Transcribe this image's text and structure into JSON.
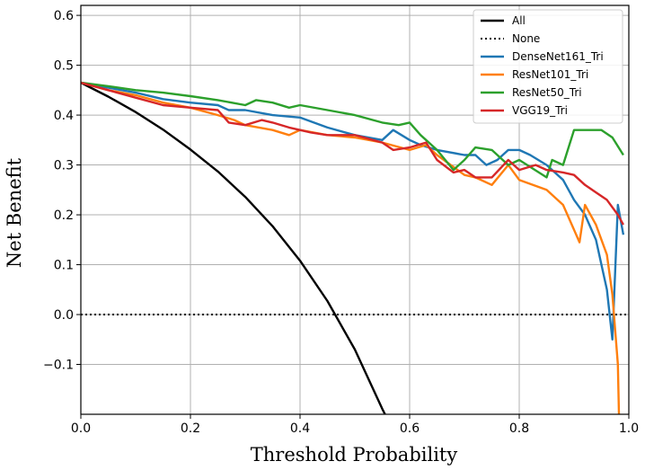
{
  "chart_data": {
    "type": "line",
    "title": "",
    "xlabel": "Threshold Probability",
    "ylabel": "Net Benefit",
    "xlim": [
      0.0,
      1.0
    ],
    "ylim": [
      -0.2,
      0.62
    ],
    "xticks": [
      0.0,
      0.2,
      0.4,
      0.6,
      0.8,
      1.0
    ],
    "xtick_labels": [
      "0.0",
      "0.2",
      "0.4",
      "0.6",
      "0.8",
      "1.0"
    ],
    "yticks": [
      -0.1,
      0.0,
      0.1,
      0.2,
      0.3,
      0.4,
      0.5,
      0.6
    ],
    "ytick_labels": [
      "−0.1",
      "0.0",
      "0.1",
      "0.2",
      "0.3",
      "0.4",
      "0.5",
      "0.6"
    ],
    "grid": true,
    "legend_position": "top-right",
    "series": [
      {
        "name": "All",
        "color": "#000000",
        "style": "solid",
        "x": [
          0.0,
          0.05,
          0.1,
          0.15,
          0.2,
          0.25,
          0.3,
          0.35,
          0.4,
          0.45,
          0.5,
          0.55,
          0.555
        ],
        "y": [
          0.465,
          0.437,
          0.406,
          0.371,
          0.331,
          0.287,
          0.236,
          0.177,
          0.108,
          0.027,
          -0.07,
          -0.189,
          -0.2
        ]
      },
      {
        "name": "None",
        "color": "#000000",
        "style": "dotted",
        "x": [
          0.0,
          1.0
        ],
        "y": [
          0.0,
          0.0
        ]
      },
      {
        "name": "DenseNet161_Tri",
        "color": "#1f77b4",
        "style": "solid",
        "x": [
          0.0,
          0.05,
          0.1,
          0.15,
          0.2,
          0.25,
          0.27,
          0.3,
          0.35,
          0.4,
          0.45,
          0.5,
          0.55,
          0.57,
          0.6,
          0.62,
          0.65,
          0.7,
          0.72,
          0.74,
          0.76,
          0.78,
          0.8,
          0.82,
          0.85,
          0.88,
          0.9,
          0.92,
          0.94,
          0.96,
          0.97,
          0.98,
          0.99
        ],
        "y": [
          0.465,
          0.455,
          0.445,
          0.432,
          0.425,
          0.42,
          0.41,
          0.41,
          0.4,
          0.395,
          0.375,
          0.36,
          0.35,
          0.37,
          0.35,
          0.34,
          0.33,
          0.32,
          0.32,
          0.3,
          0.31,
          0.33,
          0.33,
          0.32,
          0.3,
          0.27,
          0.23,
          0.2,
          0.15,
          0.05,
          -0.05,
          0.22,
          0.16
        ]
      },
      {
        "name": "ResNet101_Tri",
        "color": "#ff7f0e",
        "style": "solid",
        "x": [
          0.0,
          0.05,
          0.1,
          0.15,
          0.2,
          0.25,
          0.28,
          0.3,
          0.35,
          0.38,
          0.4,
          0.45,
          0.5,
          0.55,
          0.6,
          0.63,
          0.65,
          0.7,
          0.72,
          0.75,
          0.78,
          0.8,
          0.85,
          0.88,
          0.9,
          0.91,
          0.92,
          0.94,
          0.96,
          0.97,
          0.98,
          0.982
        ],
        "y": [
          0.465,
          0.45,
          0.44,
          0.425,
          0.415,
          0.4,
          0.39,
          0.38,
          0.37,
          0.36,
          0.37,
          0.36,
          0.355,
          0.345,
          0.33,
          0.34,
          0.32,
          0.28,
          0.275,
          0.26,
          0.3,
          0.27,
          0.25,
          0.22,
          0.17,
          0.145,
          0.22,
          0.18,
          0.12,
          0.04,
          -0.1,
          -0.2
        ]
      },
      {
        "name": "ResNet50_Tri",
        "color": "#2ca02c",
        "style": "solid",
        "x": [
          0.0,
          0.05,
          0.1,
          0.15,
          0.2,
          0.25,
          0.3,
          0.32,
          0.35,
          0.38,
          0.4,
          0.45,
          0.5,
          0.55,
          0.58,
          0.6,
          0.62,
          0.65,
          0.68,
          0.7,
          0.72,
          0.75,
          0.78,
          0.8,
          0.85,
          0.86,
          0.88,
          0.9,
          0.92,
          0.95,
          0.97,
          0.99
        ],
        "y": [
          0.465,
          0.458,
          0.45,
          0.445,
          0.438,
          0.43,
          0.42,
          0.43,
          0.425,
          0.415,
          0.42,
          0.41,
          0.4,
          0.385,
          0.38,
          0.385,
          0.36,
          0.33,
          0.29,
          0.31,
          0.335,
          0.33,
          0.3,
          0.31,
          0.275,
          0.31,
          0.3,
          0.37,
          0.37,
          0.37,
          0.355,
          0.32
        ]
      },
      {
        "name": "VGG19_Tri",
        "color": "#d62728",
        "style": "solid",
        "x": [
          0.0,
          0.05,
          0.1,
          0.15,
          0.2,
          0.25,
          0.27,
          0.3,
          0.33,
          0.35,
          0.38,
          0.4,
          0.42,
          0.45,
          0.5,
          0.55,
          0.57,
          0.6,
          0.63,
          0.65,
          0.68,
          0.7,
          0.72,
          0.75,
          0.78,
          0.8,
          0.83,
          0.85,
          0.88,
          0.9,
          0.92,
          0.94,
          0.96,
          0.98,
          0.99
        ],
        "y": [
          0.465,
          0.45,
          0.435,
          0.42,
          0.415,
          0.41,
          0.385,
          0.38,
          0.39,
          0.385,
          0.375,
          0.37,
          0.365,
          0.36,
          0.36,
          0.345,
          0.33,
          0.335,
          0.345,
          0.31,
          0.285,
          0.29,
          0.275,
          0.275,
          0.31,
          0.29,
          0.3,
          0.29,
          0.285,
          0.28,
          0.26,
          0.245,
          0.23,
          0.2,
          0.18
        ]
      }
    ]
  }
}
